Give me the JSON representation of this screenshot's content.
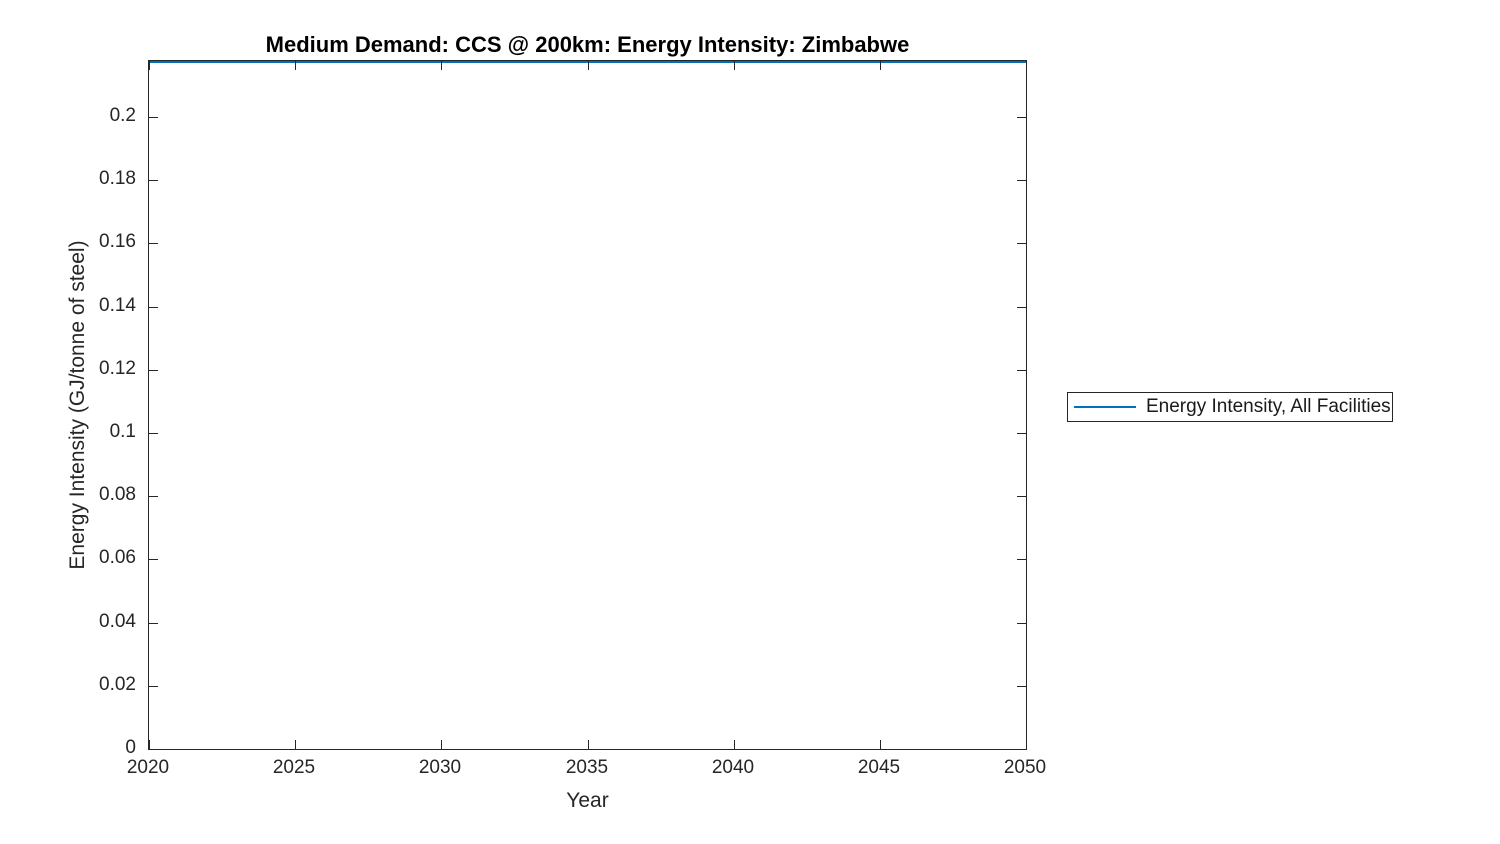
{
  "figure": {
    "title": "Medium Demand: CCS @ 200km: Energy Intensity: Zimbabwe",
    "xlabel": "Year",
    "ylabel": "Energy Intensity (GJ/tonne of steel)",
    "background": "#FFFFFF"
  },
  "legend": {
    "position": "outside-right",
    "entries": [
      {
        "label": "Energy Intensity, All Facilities",
        "color": "#0072BD",
        "marker": "line"
      }
    ]
  },
  "chart_data": {
    "type": "line",
    "title": "Medium Demand: CCS @ 200km: Energy Intensity: Zimbabwe",
    "xlabel": "Year",
    "ylabel": "Energy Intensity (GJ/tonne of steel)",
    "xlim": [
      2020,
      2050
    ],
    "ylim": [
      0,
      0.2177
    ],
    "xticks": [
      2020,
      2025,
      2030,
      2035,
      2040,
      2045,
      2050
    ],
    "xticklabels": [
      "2020",
      "2025",
      "2030",
      "2035",
      "2040",
      "2045",
      "2050"
    ],
    "yticks": [
      0,
      0.02,
      0.04,
      0.06,
      0.08,
      0.1,
      0.12,
      0.14,
      0.16,
      0.18,
      0.2
    ],
    "yticklabels": [
      "0",
      "0.02",
      "0.04",
      "0.06",
      "0.08",
      "0.1",
      "0.12",
      "0.14",
      "0.16",
      "0.18",
      "0.2"
    ],
    "grid": false,
    "box": true,
    "legend_position": "outside-right",
    "series": [
      {
        "name": "Energy Intensity, All Facilities",
        "color": "#0072BD",
        "x": [
          2020,
          2025,
          2030,
          2035,
          2040,
          2045,
          2050
        ],
        "y": [
          0.2177,
          0.2177,
          0.2177,
          0.2177,
          0.2177,
          0.2177,
          0.2177
        ]
      }
    ],
    "colors": {
      "axis": "#262626",
      "line": "#0072BD",
      "title": "#000000"
    }
  }
}
